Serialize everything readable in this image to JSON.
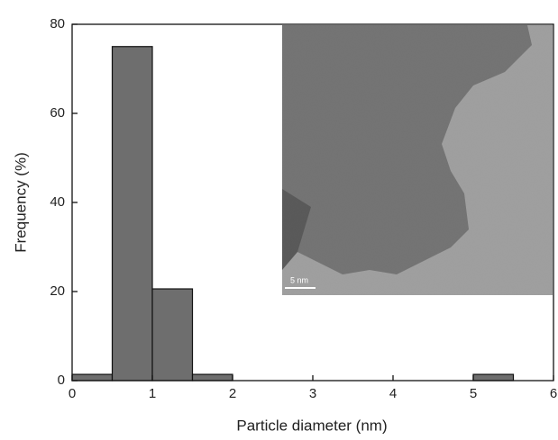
{
  "chart_data": {
    "type": "histogram",
    "x_label": "Particle diameter (nm)",
    "y_label": "Frequency (%)",
    "bins": [
      0,
      0.5,
      1,
      1.5,
      2,
      2.5,
      3,
      3.5,
      4,
      4.5,
      5,
      5.5,
      6
    ],
    "values": [
      1.4,
      75,
      20.6,
      1.4,
      0,
      0,
      0,
      0,
      0,
      0,
      1.4,
      0
    ],
    "color": "#6e6e6e",
    "xlim": [
      0,
      6
    ],
    "xticks": [
      0,
      1,
      2,
      3,
      4,
      5,
      6
    ],
    "ylim": [
      0,
      80
    ],
    "yticks": [
      0,
      20,
      40,
      60,
      80
    ],
    "inset_scale_label": "5 nm"
  }
}
